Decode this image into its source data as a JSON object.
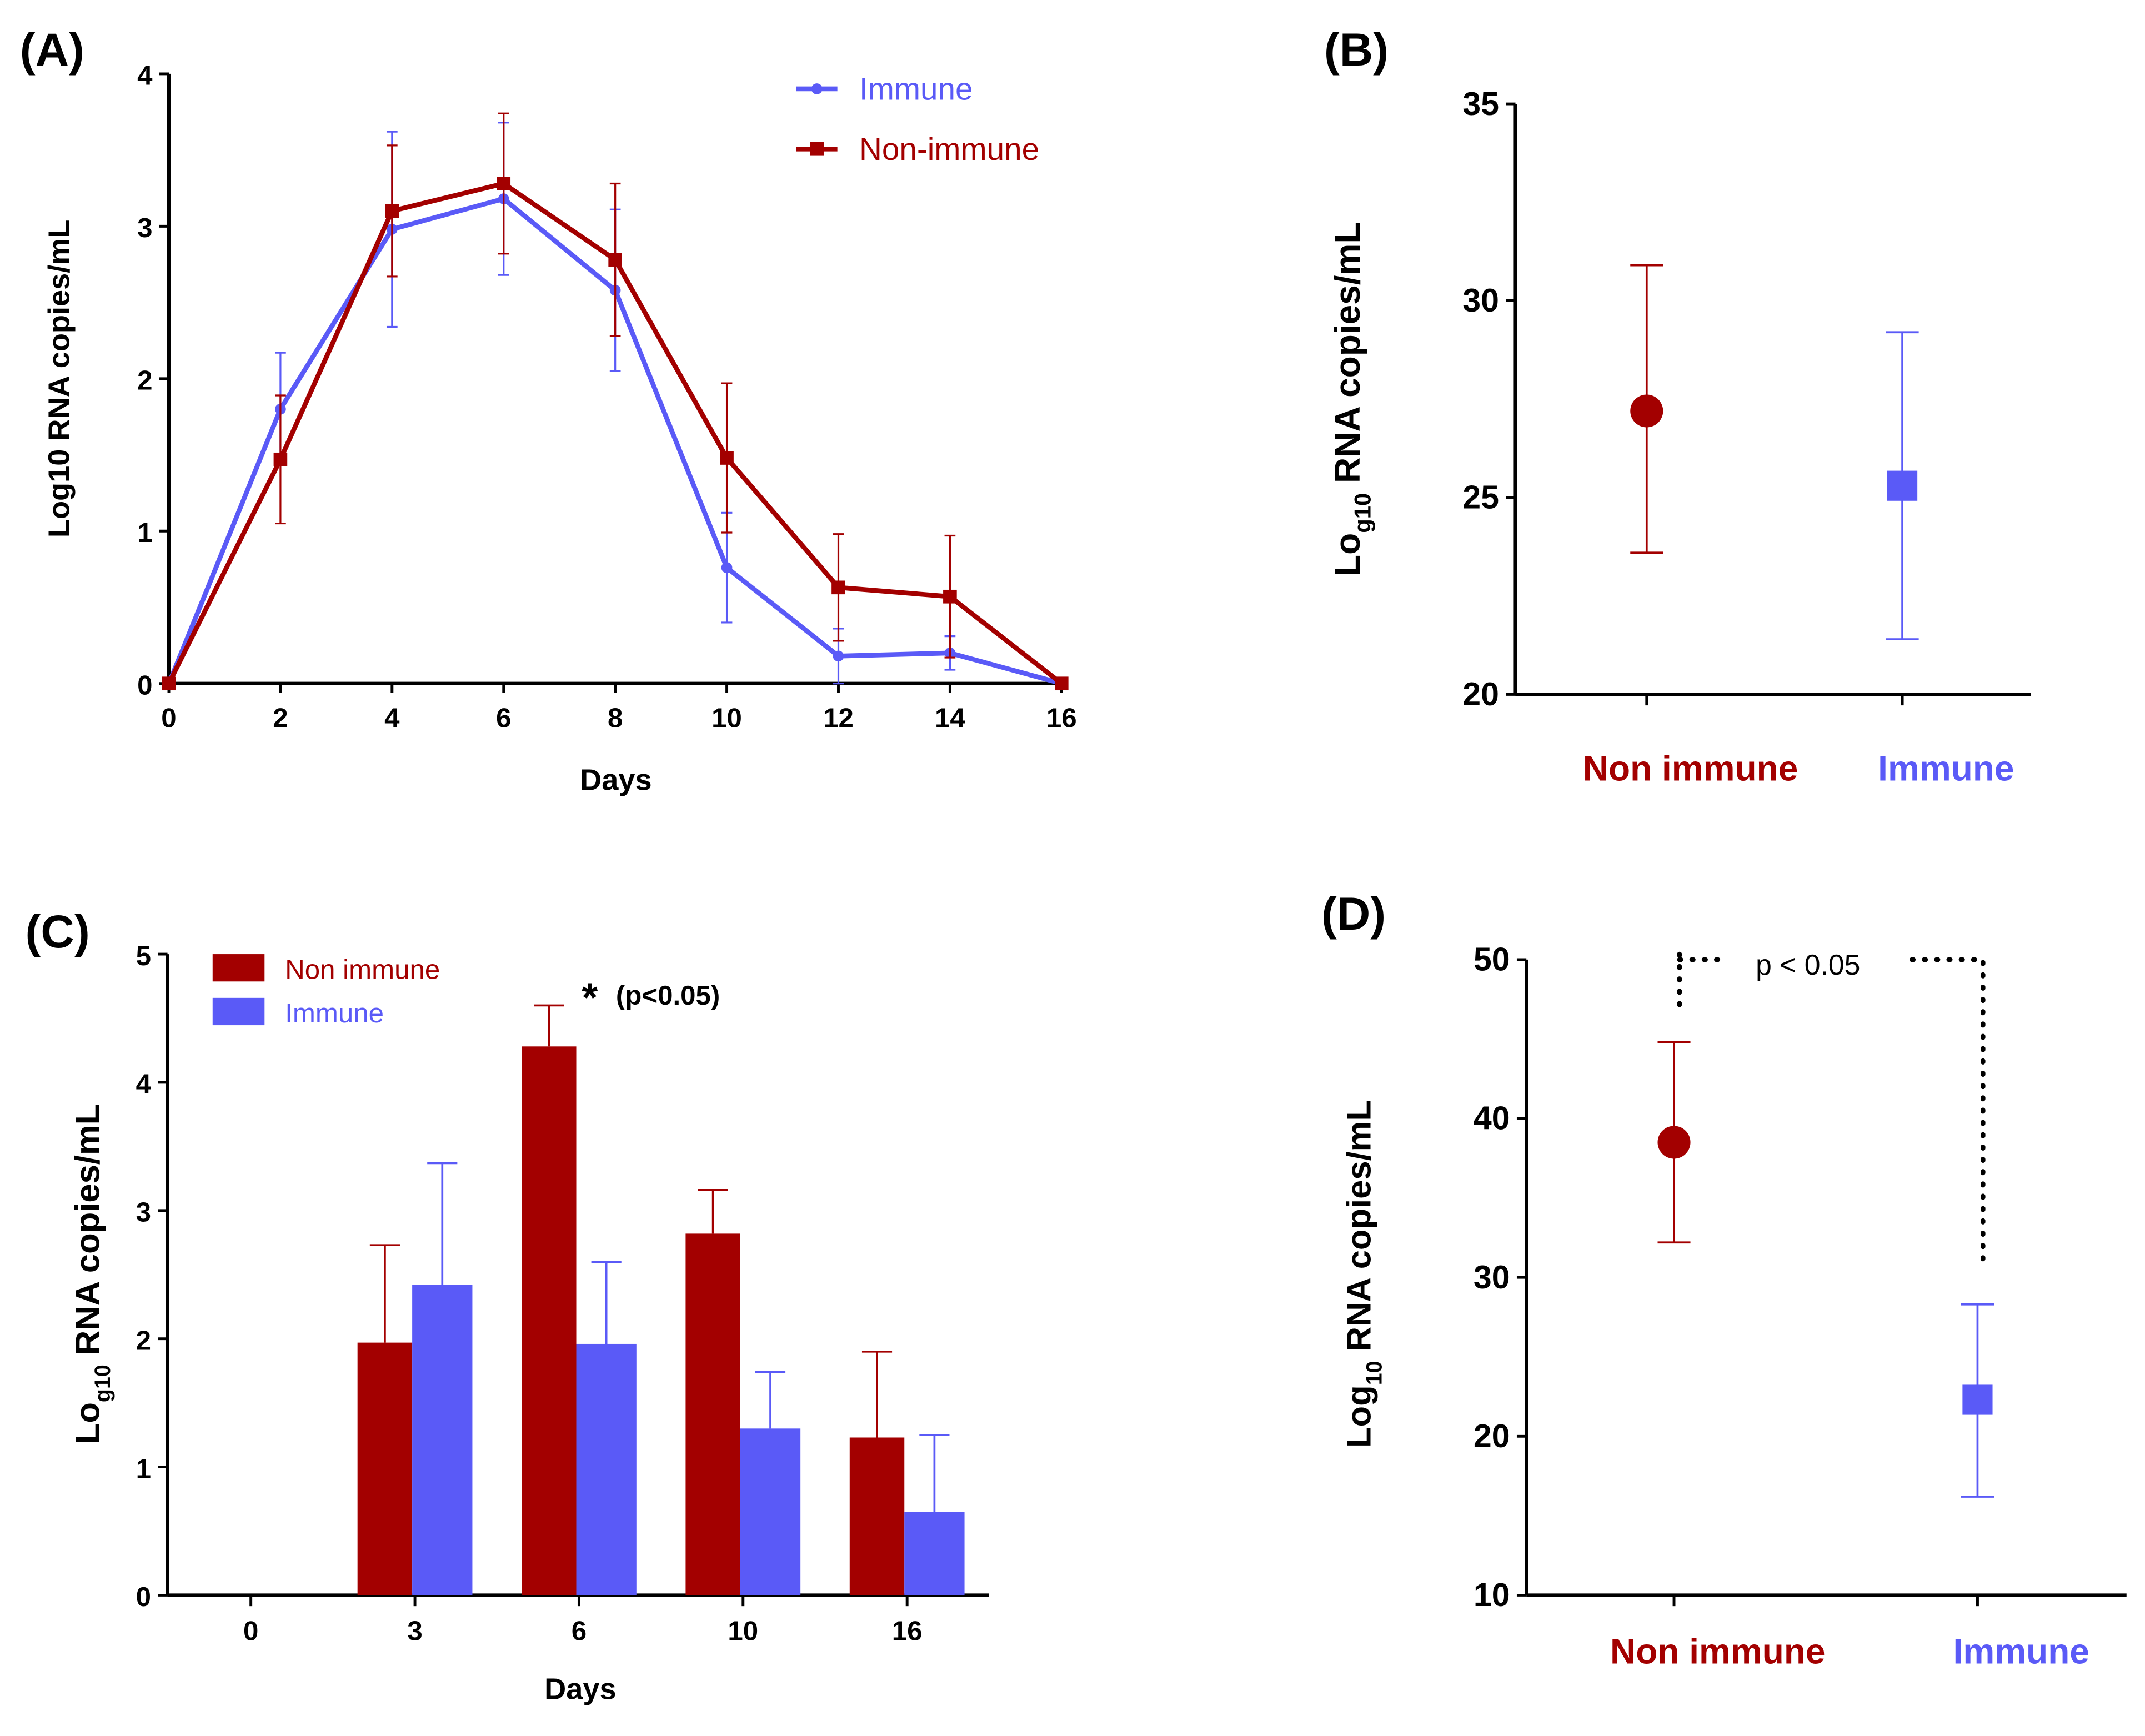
{
  "colors": {
    "immune": "#5a5af7",
    "non_immune": "#a30000",
    "axis": "#000000"
  },
  "chart_data": [
    {
      "panel": "(A)",
      "type": "line",
      "xlabel": "Days",
      "ylabel": "Log10 RNA copies/mL",
      "xlim": [
        0,
        16
      ],
      "ylim": [
        0,
        4
      ],
      "xticks": [
        0,
        2,
        4,
        6,
        8,
        10,
        12,
        14,
        16
      ],
      "yticks": [
        0,
        1,
        2,
        3,
        4
      ],
      "legend": "top-right",
      "x": [
        0,
        2,
        4,
        6,
        8,
        10,
        12,
        14,
        16
      ],
      "series": [
        {
          "name": "Immune",
          "values": [
            0,
            1.8,
            2.98,
            3.18,
            2.58,
            0.76,
            0.18,
            0.2,
            0
          ],
          "error": [
            0,
            0.37,
            0.64,
            0.5,
            0.53,
            0.36,
            0.18,
            0.11,
            0
          ],
          "marker": "circle"
        },
        {
          "name": "Non-immune",
          "values": [
            0,
            1.47,
            3.1,
            3.28,
            2.78,
            1.48,
            0.63,
            0.57,
            0
          ],
          "error": [
            0,
            0.42,
            0.43,
            0.46,
            0.5,
            0.49,
            0.35,
            0.4,
            0
          ],
          "marker": "square"
        }
      ]
    },
    {
      "panel": "(B)",
      "type": "scatter",
      "ylabel_main": "Lo",
      "ylabel_sub": "g10",
      "ylabel_rest": " RNA copies/mL",
      "ylim": [
        20,
        35
      ],
      "yticks": [
        20,
        25,
        30,
        35
      ],
      "categories": [
        "Non immune",
        "Immune"
      ],
      "values": [
        27.2,
        25.3
      ],
      "error_low": [
        23.6,
        21.4
      ],
      "error_high": [
        30.9,
        29.2
      ]
    },
    {
      "panel": "(C)",
      "type": "bar",
      "xlabel": "Days",
      "ylabel_main": "Lo",
      "ylabel_sub": "g10",
      "ylabel_rest": " RNA copies/mL",
      "ylim": [
        0,
        5
      ],
      "yticks": [
        0,
        1,
        2,
        3,
        4,
        5
      ],
      "categories": [
        "0",
        "3",
        "6",
        "10",
        "16"
      ],
      "legend": "top-left",
      "annotation": "(p<0.05)",
      "annotation_mark": "*",
      "series": [
        {
          "name": "Non immune",
          "values": [
            0,
            1.97,
            4.28,
            2.82,
            1.23
          ],
          "error_high": [
            0,
            2.73,
            4.6,
            3.16,
            1.9
          ]
        },
        {
          "name": "Immune",
          "values": [
            0,
            2.42,
            1.96,
            1.3,
            0.65
          ],
          "error_high": [
            0,
            3.37,
            2.6,
            1.74,
            1.25
          ]
        }
      ]
    },
    {
      "panel": "(D)",
      "type": "scatter",
      "ylabel_main": "Log",
      "ylabel_sub": "10",
      "ylabel_rest": " RNA copies/mL",
      "ylim": [
        10,
        50
      ],
      "yticks": [
        10,
        20,
        30,
        40,
        50
      ],
      "categories": [
        "Non immune",
        "Immune"
      ],
      "values": [
        38.5,
        22.3
      ],
      "error_low": [
        32.2,
        16.2
      ],
      "error_high": [
        44.8,
        28.3
      ],
      "annotation": "p < 0.05"
    }
  ]
}
